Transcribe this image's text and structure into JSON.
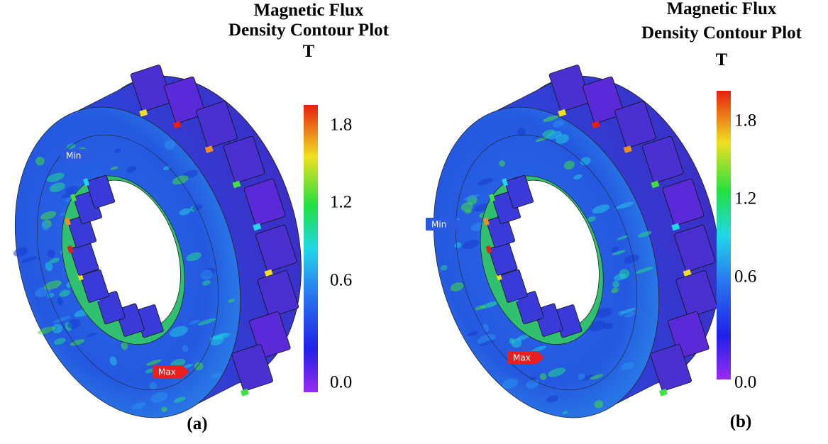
{
  "panels": [
    {
      "title": [
        "Magnetic Flux",
        "Density Contour Plot"
      ],
      "unit": "T",
      "colorbar_labels": [
        "1.8",
        "1.2",
        "0.6",
        "0.0"
      ],
      "markers": {
        "min": "Min",
        "max": "Max"
      },
      "caption": "(a)"
    },
    {
      "title": [
        "Magnetic Flux",
        "Density Contour Plot"
      ],
      "unit": "T",
      "colorbar_labels": [
        "1.8",
        "1.2",
        "0.6",
        "0.0"
      ],
      "markers": {
        "min": "Min",
        "max": "Max"
      },
      "caption": "(b)"
    }
  ]
}
